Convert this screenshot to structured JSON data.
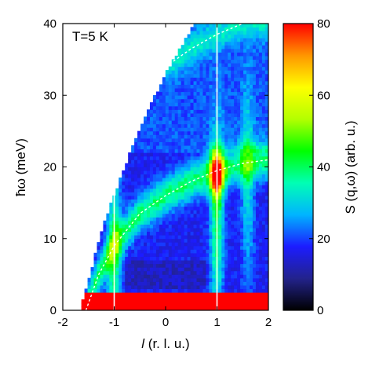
{
  "chart_data": [
    {
      "type": "heatmap",
      "title": "",
      "annotation": "T=5 K",
      "xlabel_italic": "l",
      "xlabel_rest": " (r. l. u.)",
      "ylabel": "ħω (meV)",
      "xlim": [
        -2,
        2
      ],
      "ylim": [
        0,
        40
      ],
      "xticks": [
        "-2",
        "-1",
        "0",
        "1",
        "2"
      ],
      "xtick_values": [
        -2,
        -1,
        0,
        1,
        2
      ],
      "yticks": [
        "0",
        "10",
        "20",
        "30",
        "40"
      ],
      "ytick_values": [
        0,
        10,
        20,
        30,
        40
      ],
      "grid": false,
      "coverage_boundary": [
        [
          -1.65,
          0
        ],
        [
          -1.55,
          3
        ],
        [
          -1.2,
          12
        ],
        [
          -0.8,
          20
        ],
        [
          -0.4,
          27
        ],
        [
          0,
          33
        ],
        [
          0.4,
          38
        ],
        [
          0.55,
          40
        ]
      ],
      "elastic_band": {
        "ymin": 0,
        "ymax": 2.5,
        "value": 80
      },
      "vertical_lines_l": [
        -1,
        1
      ],
      "dispersion_lower": [
        [
          -1.55,
          0
        ],
        [
          -1.3,
          5
        ],
        [
          -1,
          9
        ],
        [
          -0.5,
          13.5
        ],
        [
          0,
          16
        ],
        [
          0.5,
          18
        ],
        [
          1,
          19.5
        ],
        [
          1.5,
          20.5
        ],
        [
          2,
          21
        ]
      ],
      "dispersion_upper": [
        [
          0,
          34
        ],
        [
          0.5,
          36.5
        ],
        [
          1,
          38.5
        ],
        [
          1.5,
          40
        ]
      ],
      "features": [
        {
          "l": 1.0,
          "e": 19,
          "value": 75,
          "note": "strong spot"
        },
        {
          "l": 1.0,
          "e": 12,
          "value": 45,
          "note": "vertical streak"
        },
        {
          "l": -1.0,
          "e": 8,
          "value": 45,
          "note": "vertical streak"
        },
        {
          "l": 1.6,
          "e": 18,
          "value": 35,
          "note": "branch"
        }
      ]
    },
    {
      "type": "colorbar",
      "label": "S (q,ω) (arb. u.)",
      "range": [
        0,
        80
      ],
      "ticks": [
        "0",
        "20",
        "40",
        "60",
        "80"
      ],
      "tick_values": [
        0,
        20,
        40,
        60,
        80
      ],
      "colormap": [
        "#000000",
        "#23238c",
        "#1c1cff",
        "#00b4ff",
        "#00ffb4",
        "#00ff00",
        "#b4ff00",
        "#ffff00",
        "#ff9600",
        "#ff0000"
      ]
    }
  ]
}
